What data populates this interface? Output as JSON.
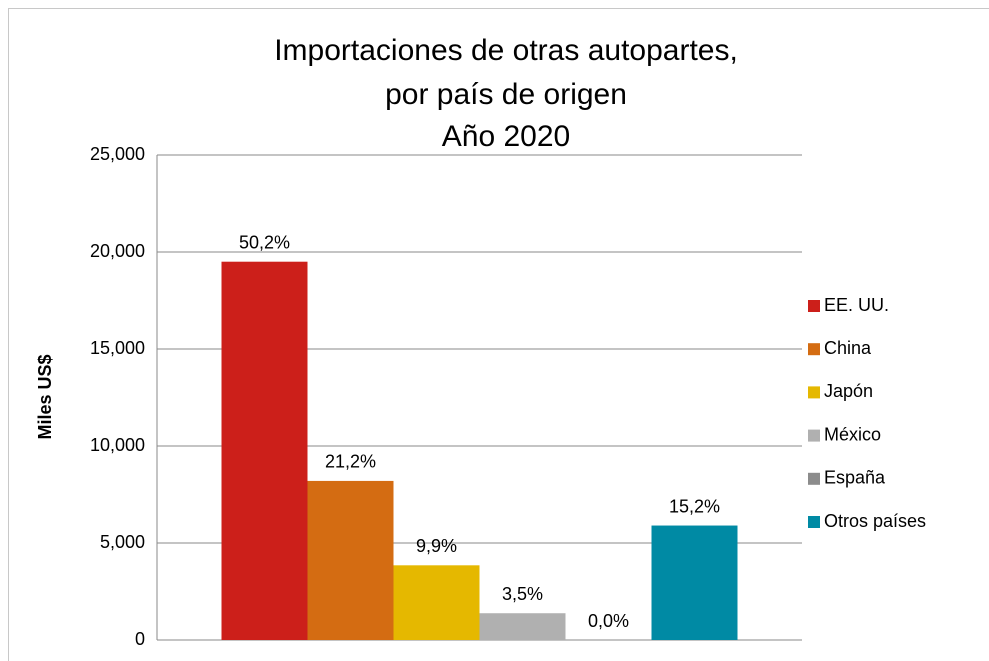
{
  "chart_data": {
    "type": "bar",
    "title": [
      "Importaciones de otras autopartes,",
      "por país de origen",
      "Año 2020"
    ],
    "y_label": "Miles US$",
    "categories": [
      null
    ],
    "series": [
      {
        "name": "EE. UU.",
        "color": "#cc1f1a",
        "values": [
          19500
        ],
        "value_labels": [
          "50,2%"
        ]
      },
      {
        "name": "China",
        "color": "#d46c12",
        "values": [
          8200
        ],
        "value_labels": [
          "21,2%"
        ]
      },
      {
        "name": "Japón",
        "color": "#e5b800",
        "values": [
          3850
        ],
        "value_labels": [
          "9,9%"
        ]
      },
      {
        "name": "México",
        "color": "#b0b0b0",
        "values": [
          1380
        ],
        "value_labels": [
          "3,5%"
        ]
      },
      {
        "name": "España",
        "color": "#8c8c8c",
        "values": [
          0
        ],
        "value_labels": [
          "0,0%"
        ]
      },
      {
        "name": "Otros países",
        "color": "#008aa4",
        "values": [
          5900
        ],
        "value_labels": [
          "15,2%"
        ]
      }
    ],
    "ylim": [
      0,
      25000
    ],
    "yticks": [
      0,
      {
        "value": 5000,
        "label": "5,000"
      },
      {
        "value": 10000,
        "label": "10,000"
      },
      {
        "value": 15000,
        "label": "15,000"
      },
      {
        "value": 20000,
        "label": "20,000"
      },
      {
        "value": 25000,
        "label": "25,000"
      }
    ],
    "grid": true,
    "legend": "right"
  }
}
